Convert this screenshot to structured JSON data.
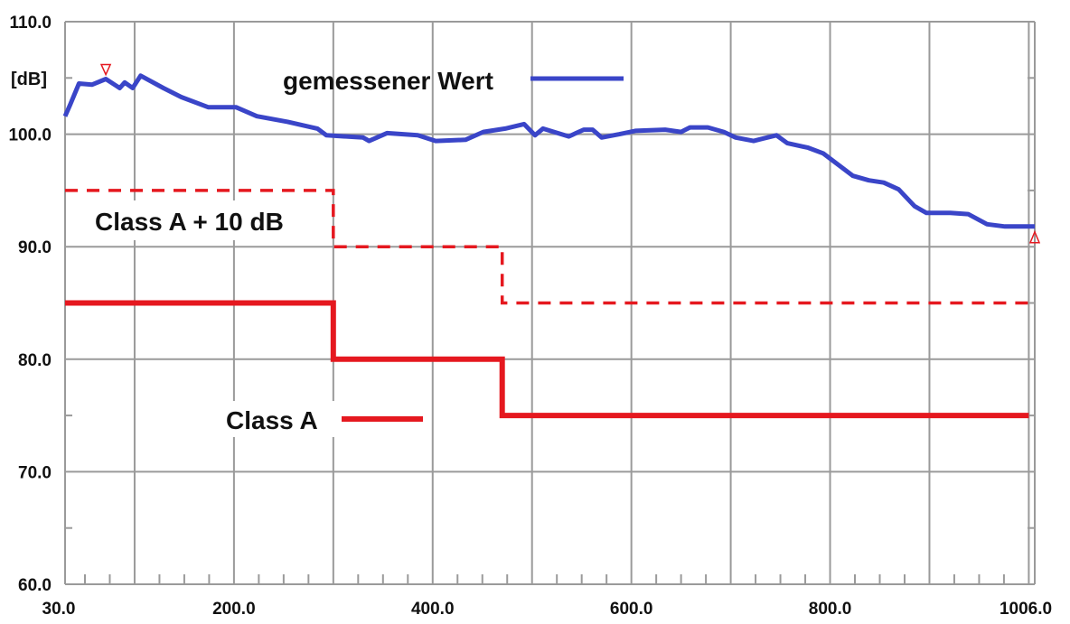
{
  "chart_data": {
    "type": "line",
    "title": "",
    "xlabel": "",
    "ylabel": "[dB]",
    "xlim": [
      30.0,
      1006.0
    ],
    "ylim": [
      60.0,
      110.0
    ],
    "x_tick_labels": [
      {
        "value": 30,
        "label": "30.0"
      },
      {
        "value": 200,
        "label": "200.0"
      },
      {
        "value": 400,
        "label": "400.0"
      },
      {
        "value": 600,
        "label": "600.0"
      },
      {
        "value": 800,
        "label": "800.0"
      },
      {
        "value": 1006,
        "label": "1006.0"
      }
    ],
    "y_tick_labels": [
      {
        "value": 60,
        "label": "60.0"
      },
      {
        "value": 70,
        "label": "70.0"
      },
      {
        "value": 80,
        "label": "80.0"
      },
      {
        "value": 90,
        "label": "90.0"
      },
      {
        "value": 100,
        "label": "100.0"
      },
      {
        "value": 110,
        "label": "110.0"
      }
    ],
    "grid": true,
    "x_major_grid_step": 100,
    "x_minor_tick_step": 25,
    "y_major_grid_step": 10,
    "y_minor_tick_step": 5,
    "colors": {
      "measured": "#3a45c8",
      "limit": "#e5181f",
      "grid": "#9a9a9a"
    },
    "series": [
      {
        "name": "gemessener Wert",
        "style": "solid",
        "x": [
          30,
          35,
          44,
          57,
          71,
          85,
          90,
          98,
          106,
          129,
          147,
          174,
          202,
          223,
          254,
          284,
          293,
          330,
          336,
          354,
          385,
          403,
          433,
          451,
          473,
          492,
          503,
          511,
          537,
          552,
          561,
          570,
          588,
          604,
          634,
          650,
          659,
          677,
          693,
          705,
          723,
          732,
          746,
          757,
          778,
          793,
          805,
          823,
          839,
          854,
          869,
          885,
          897,
          921,
          939,
          958,
          976,
          1006
        ],
        "y": [
          101.6,
          102.6,
          104.5,
          104.4,
          104.9,
          104.1,
          104.6,
          104.1,
          105.2,
          104.1,
          103.3,
          102.4,
          102.4,
          101.6,
          101.1,
          100.5,
          99.9,
          99.7,
          99.4,
          100.1,
          99.9,
          99.4,
          99.5,
          100.2,
          100.5,
          100.9,
          99.9,
          100.5,
          99.8,
          100.4,
          100.4,
          99.7,
          100.0,
          100.3,
          100.4,
          100.2,
          100.6,
          100.6,
          100.2,
          99.7,
          99.4,
          99.6,
          99.9,
          99.2,
          98.8,
          98.3,
          97.5,
          96.3,
          95.9,
          95.7,
          95.1,
          93.6,
          93.0,
          93.0,
          92.9,
          92.0,
          91.8,
          91.8
        ]
      },
      {
        "name": "Class A + 10 dB",
        "style": "dashed",
        "x": [
          30,
          300,
          300,
          470,
          470,
          1000
        ],
        "y": [
          95,
          95,
          90,
          90,
          85,
          85
        ]
      },
      {
        "name": "Class A",
        "style": "solid",
        "x": [
          30,
          300,
          300,
          470,
          470,
          1000
        ],
        "y": [
          85,
          85,
          80,
          80,
          75,
          75
        ]
      }
    ],
    "markers": [
      {
        "type": "triangle-down",
        "x": 71,
        "y": 104.9
      },
      {
        "type": "triangle-up",
        "x": 1006,
        "y": 91.8
      }
    ],
    "legend": {
      "placement": "inline"
    }
  }
}
